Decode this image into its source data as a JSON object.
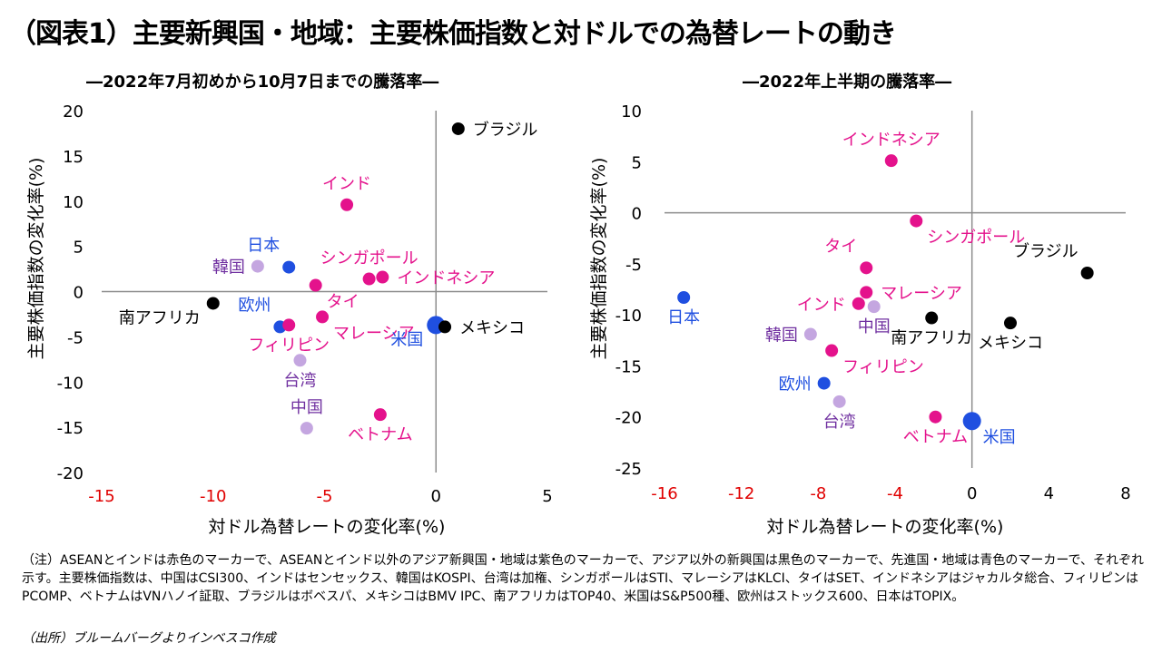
{
  "title": "（図表1）主要新興国・地域：主要株価指数と対ドルでの為替レートの動き",
  "colors": {
    "asean_india": "#e4128c",
    "other_asia": "#7030a0",
    "other_emerging": "#000000",
    "developed": "#1f4fe0",
    "light_asia": "#c4a6e0",
    "neg_tick": "#e00000"
  },
  "chart_data": [
    {
      "type": "scatter",
      "title": "―2022年7月初めから10月7日までの騰落率―",
      "xlabel": "対ドル為替レートの変化率(%)",
      "ylabel": "主要株価指数の変化率(%)",
      "xlim": [
        -15,
        5
      ],
      "ylim": [
        -20,
        20
      ],
      "xticks": [
        -15,
        -10,
        -5,
        0,
        5
      ],
      "yticks": [
        20,
        15,
        10,
        5,
        0,
        -5,
        -10,
        -15,
        -20
      ],
      "points": [
        {
          "label": "ブラジル",
          "x": 1.0,
          "y": 18.0,
          "group": "other_emerging",
          "size": "normal",
          "label_pos": "right"
        },
        {
          "label": "インド",
          "x": -4.0,
          "y": 9.6,
          "group": "asean_india",
          "size": "normal",
          "label_pos": "above"
        },
        {
          "label": "日本",
          "x": -6.6,
          "y": 2.7,
          "group": "developed",
          "size": "normal",
          "label_pos": "above-left"
        },
        {
          "label": "韓国",
          "x": -8.0,
          "y": 2.8,
          "group": "light_asia",
          "size": "normal",
          "label_pos": "left"
        },
        {
          "label": "シンガポール",
          "x": -3.0,
          "y": 1.4,
          "group": "asean_india",
          "size": "normal",
          "label_pos": "above"
        },
        {
          "label": "インドネシア",
          "x": -2.4,
          "y": 1.6,
          "group": "asean_india",
          "size": "normal",
          "label_pos": "right"
        },
        {
          "label": "タイ",
          "x": -5.4,
          "y": 0.7,
          "group": "asean_india",
          "size": "normal",
          "label_pos": "below-right"
        },
        {
          "label": "南アフリカ",
          "x": -10.0,
          "y": -1.3,
          "group": "other_emerging",
          "size": "normal",
          "label_pos": "below-left"
        },
        {
          "label": "欧州",
          "x": -7.0,
          "y": -3.9,
          "group": "developed",
          "size": "normal",
          "label_pos": "above-left"
        },
        {
          "label": "フィリピン",
          "x": -6.6,
          "y": -3.7,
          "group": "asean_india",
          "size": "normal",
          "label_pos": "below"
        },
        {
          "label": "マレーシア",
          "x": -5.1,
          "y": -2.8,
          "group": "asean_india",
          "size": "normal",
          "label_pos": "below-right"
        },
        {
          "label": "米国",
          "x": 0.0,
          "y": -3.7,
          "group": "developed",
          "size": "large",
          "label_pos": "below-left"
        },
        {
          "label": "メキシコ",
          "x": 0.4,
          "y": -3.9,
          "group": "other_emerging",
          "size": "normal",
          "label_pos": "right"
        },
        {
          "label": "台湾",
          "x": -6.1,
          "y": -7.6,
          "group": "light_asia",
          "size": "normal",
          "label_pos": "below"
        },
        {
          "label": "中国",
          "x": -5.8,
          "y": -15.1,
          "group": "light_asia",
          "size": "normal",
          "label_pos": "above"
        },
        {
          "label": "ベトナム",
          "x": -2.5,
          "y": -13.6,
          "group": "asean_india",
          "size": "normal",
          "label_pos": "below"
        }
      ]
    },
    {
      "type": "scatter",
      "title": "―2022年上半期の騰落率―",
      "xlabel": "対ドル為替レートの変化率(%)",
      "ylabel": "主要株価指数の変化率(%)",
      "xlim": [
        -16,
        8
      ],
      "ylim": [
        -25,
        10
      ],
      "xticks": [
        -16,
        -12,
        -8,
        -4,
        0,
        4,
        8
      ],
      "yticks": [
        10,
        5,
        0,
        -5,
        -10,
        -15,
        -20,
        -25
      ],
      "points": [
        {
          "label": "インドネシア",
          "x": -4.2,
          "y": 5.1,
          "group": "asean_india",
          "size": "normal",
          "label_pos": "above"
        },
        {
          "label": "シンガポール",
          "x": -2.9,
          "y": -0.8,
          "group": "asean_india",
          "size": "normal",
          "label_pos": "below-right"
        },
        {
          "label": "ブラジル",
          "x": 6.0,
          "y": -5.9,
          "group": "other_emerging",
          "size": "normal",
          "label_pos": "above-left"
        },
        {
          "label": "タイ",
          "x": -5.5,
          "y": -5.4,
          "group": "asean_india",
          "size": "normal",
          "label_pos": "above-left"
        },
        {
          "label": "マレーシア",
          "x": -5.5,
          "y": -7.8,
          "group": "asean_india",
          "size": "normal",
          "label_pos": "right"
        },
        {
          "label": "インド",
          "x": -5.9,
          "y": -8.9,
          "group": "asean_india",
          "size": "normal",
          "label_pos": "left"
        },
        {
          "label": "中国",
          "x": -5.1,
          "y": -9.2,
          "group": "light_asia",
          "size": "normal",
          "label_pos": "below"
        },
        {
          "label": "日本",
          "x": -15.0,
          "y": -8.3,
          "group": "developed",
          "size": "normal",
          "label_pos": "below"
        },
        {
          "label": "南アフリカ",
          "x": -2.1,
          "y": -10.3,
          "group": "other_emerging",
          "size": "normal",
          "label_pos": "below"
        },
        {
          "label": "メキシコ",
          "x": 2.0,
          "y": -10.8,
          "group": "other_emerging",
          "size": "normal",
          "label_pos": "below"
        },
        {
          "label": "韓国",
          "x": -8.4,
          "y": -11.9,
          "group": "light_asia",
          "size": "normal",
          "label_pos": "left"
        },
        {
          "label": "フィリピン",
          "x": -7.3,
          "y": -13.5,
          "group": "asean_india",
          "size": "normal",
          "label_pos": "below-right"
        },
        {
          "label": "欧州",
          "x": -7.7,
          "y": -16.7,
          "group": "developed",
          "size": "normal",
          "label_pos": "left"
        },
        {
          "label": "台湾",
          "x": -6.9,
          "y": -18.5,
          "group": "light_asia",
          "size": "normal",
          "label_pos": "below"
        },
        {
          "label": "ベトナム",
          "x": -1.9,
          "y": -20.0,
          "group": "asean_india",
          "size": "normal",
          "label_pos": "below"
        },
        {
          "label": "米国",
          "x": 0.0,
          "y": -20.4,
          "group": "developed",
          "size": "large",
          "label_pos": "below-right"
        }
      ]
    }
  ],
  "notes": "（注）ASEANとインドは赤色のマーカーで、ASEANとインド以外のアジア新興国・地域は紫色のマーカーで、アジア以外の新興国は黒色のマーカーで、先進国・地域は青色のマーカーで、それぞれ示す。主要株価指数は、中国はCSI300、インドはセンセックス、韓国はKOSPI、台湾は加権、シンガポールはSTI、マレーシアはKLCI、タイはSET、インドネシアはジャカルタ総合、フィリピンはPCOMP、ベトナムはVNハノイ証取、ブラジルはボベスパ、メキシコはBMV IPC、南アフリカはTOP40、米国はS&P500種、欧州はストックス600、日本はTOPIX。",
  "source": "（出所）ブルームバーグよりインベスコ作成"
}
